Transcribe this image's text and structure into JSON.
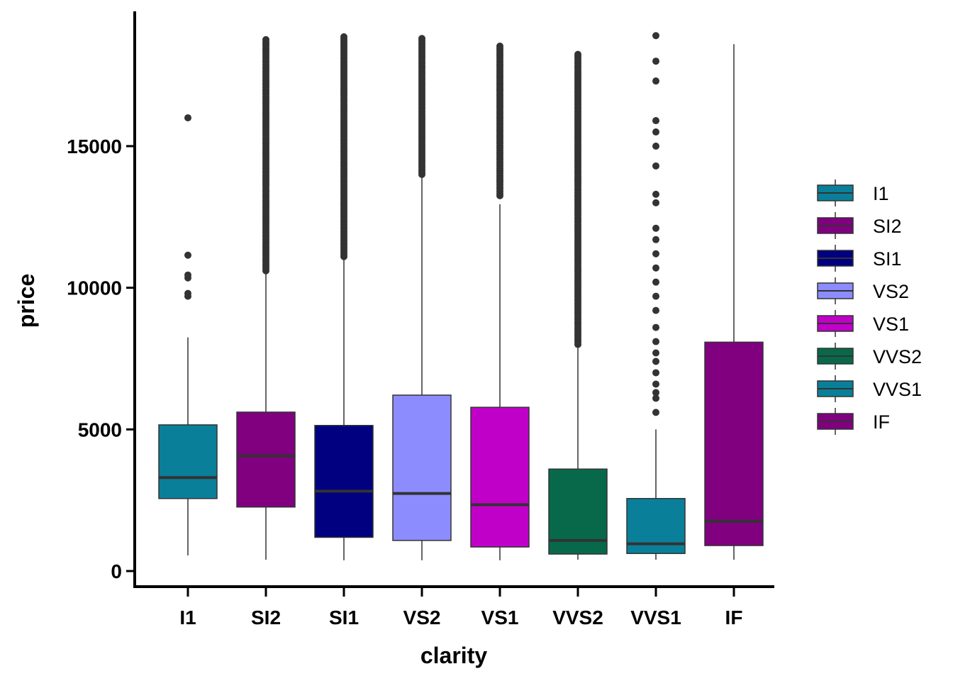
{
  "chart_data": {
    "type": "boxplot",
    "title": "",
    "xlabel": "clarity",
    "ylabel": "price",
    "ylim": [
      0,
      19000
    ],
    "y_ticks": [
      0,
      5000,
      10000,
      15000
    ],
    "grid": false,
    "legend_position": "right",
    "categories": [
      "I1",
      "SI2",
      "SI1",
      "VS2",
      "VS1",
      "VVS2",
      "VVS1",
      "IF"
    ],
    "colors": [
      "#0A7F9A",
      "#800080",
      "#000080",
      "#8C8CFF",
      "#C000C8",
      "#08694A",
      "#0A7F9A",
      "#800080"
    ],
    "boxes": [
      {
        "category": "I1",
        "whisker_low": 550,
        "q1": 2560,
        "median": 3300,
        "q3": 5160,
        "whisker_high": 8250,
        "outliers": [
          9700,
          9800,
          10350,
          10450,
          11150,
          16000
        ]
      },
      {
        "category": "SI2",
        "whisker_low": 400,
        "q1": 2260,
        "median": 4070,
        "q3": 5610,
        "whisker_high": 10550,
        "outliers_range": [
          10600,
          18800
        ]
      },
      {
        "category": "SI1",
        "whisker_low": 380,
        "q1": 1190,
        "median": 2820,
        "q3": 5140,
        "whisker_high": 11050,
        "outliers_range": [
          11100,
          18900
        ]
      },
      {
        "category": "VS2",
        "whisker_low": 380,
        "q1": 1080,
        "median": 2740,
        "q3": 6210,
        "whisker_high": 13900,
        "outliers_range": [
          14000,
          18800
        ]
      },
      {
        "category": "VS1",
        "whisker_low": 380,
        "q1": 850,
        "median": 2340,
        "q3": 5780,
        "whisker_high": 12950,
        "outliers_range": [
          13250,
          18600
        ]
      },
      {
        "category": "VVS2",
        "whisker_low": 400,
        "q1": 600,
        "median": 1080,
        "q3": 3600,
        "whisker_high": 8000,
        "outliers_range": [
          8000,
          18300
        ]
      },
      {
        "category": "VVS1",
        "whisker_low": 400,
        "q1": 620,
        "median": 960,
        "q3": 2560,
        "whisker_high": 5000,
        "outliers": [
          5600,
          6100,
          6300,
          6600,
          7000,
          7400,
          7700,
          8100,
          8600,
          9200,
          9700,
          10200,
          10700,
          11200,
          11700,
          12100,
          13000,
          13300,
          14300,
          15000,
          15500,
          15900,
          17300,
          18000,
          18900
        ]
      },
      {
        "category": "IF",
        "whisker_low": 400,
        "q1": 900,
        "median": 1760,
        "q3": 8080,
        "whisker_high": 18600,
        "outliers": []
      }
    ]
  }
}
